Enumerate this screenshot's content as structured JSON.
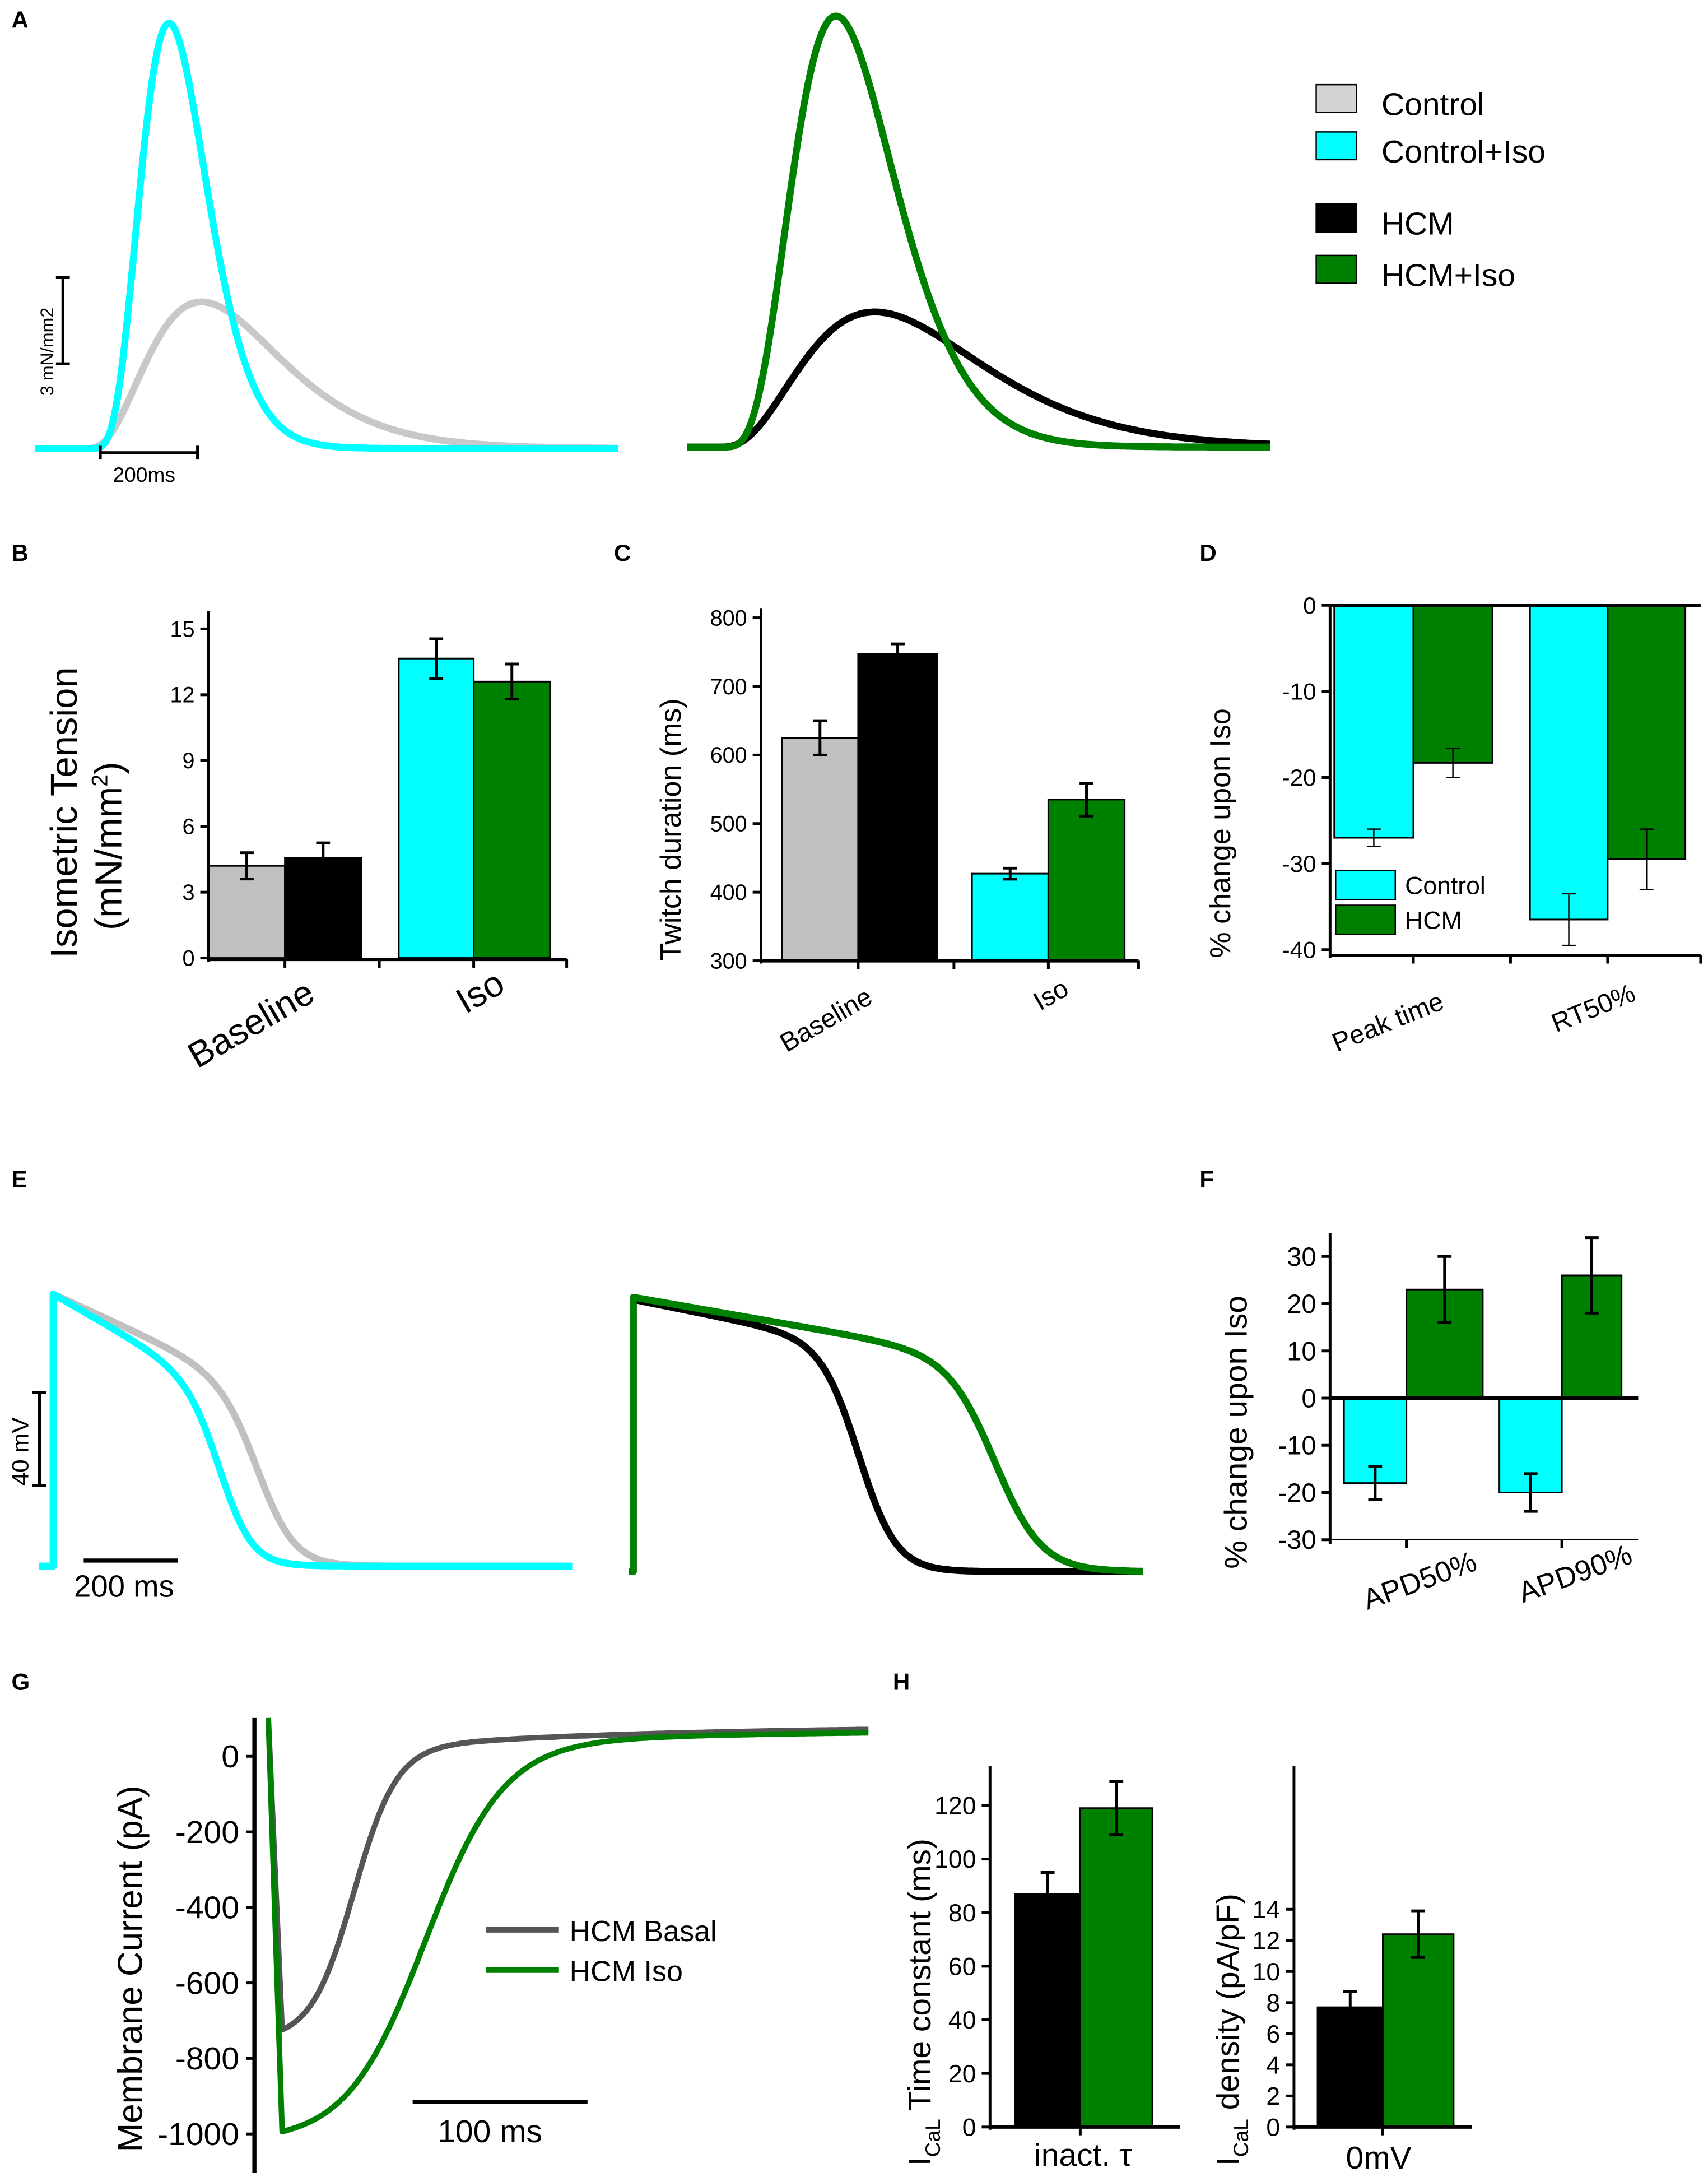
{
  "panel_labels": [
    "A",
    "B",
    "C",
    "D",
    "E",
    "F",
    "G",
    "H"
  ],
  "colors": {
    "control": "#c0c0c0",
    "control_iso": "#00ffff",
    "hcm": "#000000",
    "hcm_iso": "#008000",
    "hcm_basal_trace": "#555555"
  },
  "legend_A": [
    {
      "label": "Control",
      "color": "#d3d3d3"
    },
    {
      "label": "Control+Iso",
      "color": "#00ffff"
    },
    {
      "label": "HCM",
      "color": "#000000"
    },
    {
      "label": "HCM+Iso",
      "color": "#008000"
    }
  ],
  "chart_data": [
    {
      "id": "A_left",
      "type": "line",
      "scale_y_label": "3 mN/mm2",
      "scale_x_label": "200ms",
      "series": [
        {
          "name": "Control",
          "color": "#c8c8c8",
          "amplitude_mN_mm2": 5.1,
          "peak_time_ms": 237,
          "shape_k": 3
        },
        {
          "name": "Control+Iso",
          "color": "#00ffff",
          "amplitude_mN_mm2": 14.8,
          "peak_time_ms": 170,
          "shape_k": 6
        }
      ]
    },
    {
      "id": "A_right",
      "type": "line",
      "series": [
        {
          "name": "HCM",
          "color": "#000000",
          "amplitude_mN_mm2": 4.7,
          "peak_time_ms": 320,
          "shape_k": 3
        },
        {
          "name": "HCM+Iso",
          "color": "#008000",
          "amplitude_mN_mm2": 15.0,
          "peak_time_ms": 240,
          "shape_k": 5
        }
      ]
    },
    {
      "id": "B",
      "type": "bar",
      "ylabel_line1": "Isometric Tension",
      "ylabel_line2_a": "(mN/mm",
      "ylabel_sup": "2",
      "ylabel_line2_b": ")",
      "ylim": [
        0,
        15
      ],
      "yticks": [
        "0",
        "3",
        "6",
        "9",
        "12",
        "15"
      ],
      "ytick_values": [
        0,
        3,
        6,
        9,
        12,
        15
      ],
      "categories": [
        "Baseline",
        "Iso"
      ],
      "bars": [
        {
          "category": "Baseline",
          "condition": "Control",
          "value": 4.2,
          "error": 0.6,
          "color": "#c0c0c0"
        },
        {
          "category": "Baseline",
          "condition": "HCM",
          "value": 4.55,
          "error": 0.7,
          "color": "#000000"
        },
        {
          "category": "Iso",
          "condition": "Control+Iso",
          "value": 13.65,
          "error": 0.9,
          "color": "#00ffff"
        },
        {
          "category": "Iso",
          "condition": "HCM+Iso",
          "value": 12.6,
          "error": 0.8,
          "color": "#008000"
        }
      ]
    },
    {
      "id": "C",
      "type": "bar",
      "ylabel": "Twitch duration (ms)",
      "ylim": [
        300,
        800
      ],
      "yticks": [
        "300",
        "400",
        "500",
        "600",
        "700",
        "800"
      ],
      "ytick_values": [
        300,
        400,
        500,
        600,
        700,
        800
      ],
      "categories": [
        "Baseline",
        "Iso"
      ],
      "bars": [
        {
          "category": "Baseline",
          "condition": "Control",
          "value": 625,
          "error": 25,
          "color": "#c0c0c0"
        },
        {
          "category": "Baseline",
          "condition": "HCM",
          "value": 747,
          "error": 15,
          "color": "#000000"
        },
        {
          "category": "Iso",
          "condition": "Control+Iso",
          "value": 427,
          "error": 8,
          "color": "#00ffff"
        },
        {
          "category": "Iso",
          "condition": "HCM+Iso",
          "value": 535,
          "error": 24,
          "color": "#008000"
        }
      ]
    },
    {
      "id": "D",
      "type": "bar",
      "ylabel": "% change upon Iso",
      "ylim": [
        -40,
        0
      ],
      "yticks": [
        "0",
        "-10",
        "-20",
        "-30",
        "-40"
      ],
      "ytick_values": [
        0,
        -10,
        -20,
        -30,
        -40
      ],
      "categories": [
        "Peak time",
        "RT50%"
      ],
      "legend": [
        {
          "label": "Control",
          "color": "#00ffff"
        },
        {
          "label": "HCM",
          "color": "#008000"
        }
      ],
      "bars": [
        {
          "category": "Peak time",
          "condition": "Control",
          "value": -27.0,
          "error": 1.0,
          "color": "#00ffff"
        },
        {
          "category": "Peak time",
          "condition": "HCM",
          "value": -18.3,
          "error": 1.7,
          "color": "#008000"
        },
        {
          "category": "RT50%",
          "condition": "Control",
          "value": -36.5,
          "error": 3.0,
          "color": "#00ffff"
        },
        {
          "category": "RT50%",
          "condition": "HCM",
          "value": -29.5,
          "error": 3.5,
          "color": "#008000"
        }
      ]
    },
    {
      "id": "E_left",
      "type": "line",
      "scale_y_label": "40 mV",
      "scale_x_label": "200 ms",
      "series": [
        {
          "name": "Control",
          "color": "#c0c0c0",
          "amplitude_mV": 117,
          "apd_ms": 440,
          "slope": 0.8,
          "steep_ms": 40
        },
        {
          "name": "Control+Iso",
          "color": "#00ffff",
          "amplitude_mV": 117,
          "apd_ms": 360,
          "slope": 1.0,
          "steep_ms": 35
        }
      ]
    },
    {
      "id": "E_right",
      "type": "line",
      "series": [
        {
          "name": "HCM",
          "color": "#000000",
          "amplitude_mV": 117,
          "apd_ms": 480,
          "slope": 0.35,
          "steep_ms": 40
        },
        {
          "name": "HCM+Iso",
          "color": "#008000",
          "amplitude_mV": 118,
          "apd_ms": 770,
          "slope": 0.3,
          "steep_ms": 50
        }
      ]
    },
    {
      "id": "F",
      "type": "bar",
      "ylabel": "% change upon Iso",
      "ylim": [
        -30,
        35
      ],
      "yticks": [
        "30",
        "20",
        "10",
        "0",
        "-10",
        "-20",
        "-30"
      ],
      "ytick_values": [
        30,
        20,
        10,
        0,
        -10,
        -20,
        -30
      ],
      "categories": [
        "APD50%",
        "APD90%"
      ],
      "bars": [
        {
          "category": "APD50%",
          "condition": "Control",
          "value": -18,
          "error": 3.5,
          "color": "#00ffff"
        },
        {
          "category": "APD50%",
          "condition": "HCM",
          "value": 23,
          "error": 7,
          "color": "#008000"
        },
        {
          "category": "APD90%",
          "condition": "Control",
          "value": -20,
          "error": 4,
          "color": "#00ffff"
        },
        {
          "category": "APD90%",
          "condition": "HCM",
          "value": 26,
          "error": 8,
          "color": "#008000"
        }
      ]
    },
    {
      "id": "G",
      "type": "line",
      "ylabel": "Membrane Current (pA)",
      "scale_x_label": "100 ms",
      "yticks": [
        "0",
        "-200",
        "-400",
        "-600",
        "-800",
        "-1000"
      ],
      "ytick_values": [
        0,
        -200,
        -400,
        -600,
        -800,
        -1000
      ],
      "series": [
        {
          "name": "HCM Basal",
          "color": "#555555",
          "peak_pA": -750,
          "half_ms": 40,
          "steep_ms": 12,
          "offset_pA": 80
        },
        {
          "name": "HCM Iso",
          "color": "#008000",
          "peak_pA": -1020,
          "half_ms": 80,
          "steep_ms": 22,
          "offset_pA": 70
        }
      ]
    },
    {
      "id": "H_left",
      "type": "bar",
      "ylabel_I": "I",
      "ylabel_sub": "CaL",
      "ylabel_rest": " Time constant (ms)",
      "ylim": [
        0,
        135
      ],
      "yticks": [
        "0",
        "20",
        "40",
        "60",
        "80",
        "100",
        "120"
      ],
      "ytick_values": [
        0,
        20,
        40,
        60,
        80,
        100,
        120
      ],
      "categories": [
        "inact. τ"
      ],
      "bars": [
        {
          "category": "inact. τ",
          "condition": "HCM Basal",
          "value": 87,
          "error": 8,
          "color": "#000000"
        },
        {
          "category": "inact. τ",
          "condition": "HCM Iso",
          "value": 119,
          "error": 10,
          "color": "#008000"
        }
      ]
    },
    {
      "id": "H_right",
      "type": "bar",
      "ylabel_I": "I",
      "ylabel_sub": "CaL",
      "ylabel_rest": " density (pA/pF)",
      "ylim": [
        0,
        15.5
      ],
      "yticks": [
        "0",
        "2",
        "4",
        "6",
        "8",
        "10",
        "12",
        "14"
      ],
      "ytick_values": [
        0,
        2,
        4,
        6,
        8,
        10,
        12,
        14
      ],
      "categories": [
        "0mV"
      ],
      "bars": [
        {
          "category": "0mV",
          "condition": "HCM Basal",
          "value": 7.7,
          "error": 1.0,
          "color": "#000000"
        },
        {
          "category": "0mV",
          "condition": "HCM Iso",
          "value": 12.4,
          "error": 1.5,
          "color": "#008000"
        }
      ]
    }
  ]
}
